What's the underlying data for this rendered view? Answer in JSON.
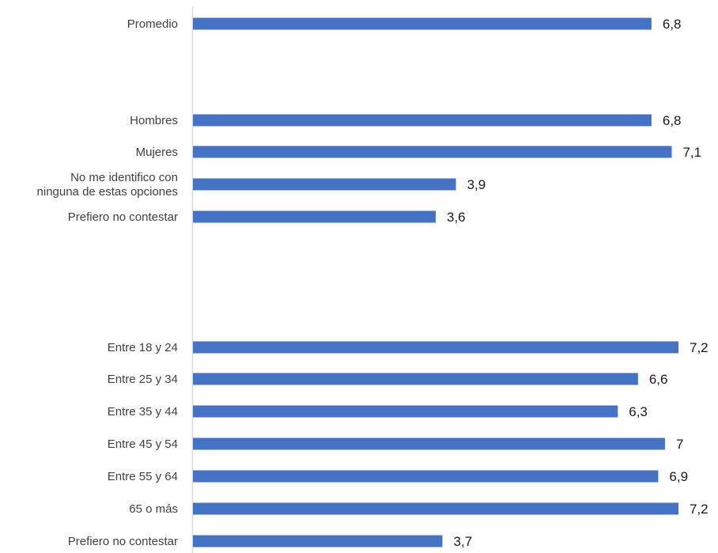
{
  "chart_data": {
    "type": "bar",
    "orientation": "horizontal",
    "title": "",
    "xlabel": "",
    "ylabel": "",
    "xlim": [
      0,
      7.2
    ],
    "grid": false,
    "legend": "none",
    "bar_color": "#4472C4",
    "categories": [
      "Promedio",
      "Hombres",
      "Mujeres",
      [
        "No me identifico con",
        "ninguna de estas opciones"
      ],
      "Prefiero no contestar",
      "Entre 18 y 24",
      "Entre 25 y 34",
      "Entre 35 y 44",
      "Entre 45 y 54",
      "Entre 55 y 64",
      "65 o más",
      "Prefiero no contestar"
    ],
    "values": [
      6.8,
      6.8,
      7.1,
      3.9,
      3.6,
      7.2,
      6.6,
      6.3,
      7,
      6.9,
      7.2,
      3.7
    ],
    "value_labels": [
      "6,8",
      "6,8",
      "7,1",
      "3,9",
      "3,6",
      "7,2",
      "6,6",
      "6,3",
      "7",
      "6,9",
      "7,2",
      "3,7"
    ]
  }
}
